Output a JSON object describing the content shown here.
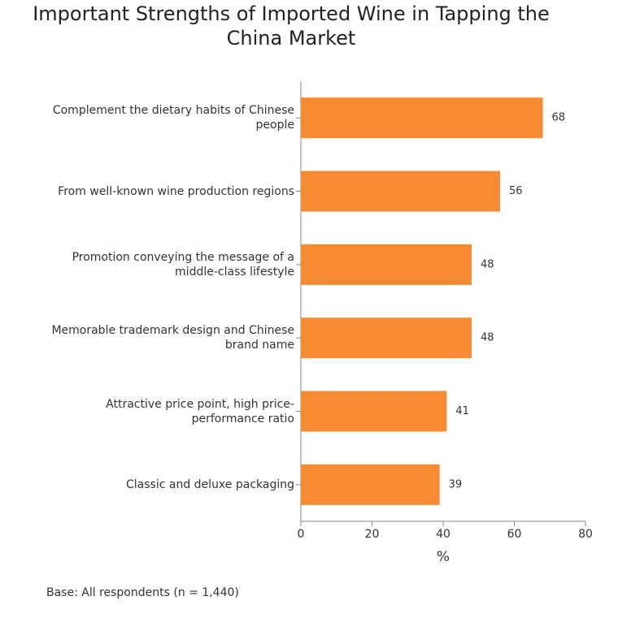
{
  "chart_data": {
    "type": "bar",
    "orientation": "horizontal",
    "title": "Important Strengths of Imported Wine in Tapping the China Market",
    "categories": [
      "Complement the dietary habits of Chinese people",
      "From well-known wine production regions",
      "Promotion conveying the message of a middle-class lifestyle",
      "Memorable trademark design and Chinese brand name",
      "Attractive price point, high price-performance ratio",
      "Classic and deluxe packaging"
    ],
    "values": [
      68,
      56,
      48,
      48,
      41,
      39
    ],
    "color": "#f68b33",
    "xlim": [
      0,
      80
    ],
    "xticks": [
      0,
      20,
      40,
      60,
      80
    ],
    "x_label": "%",
    "footnote": "Base: All respondents (n = 1,440)"
  }
}
